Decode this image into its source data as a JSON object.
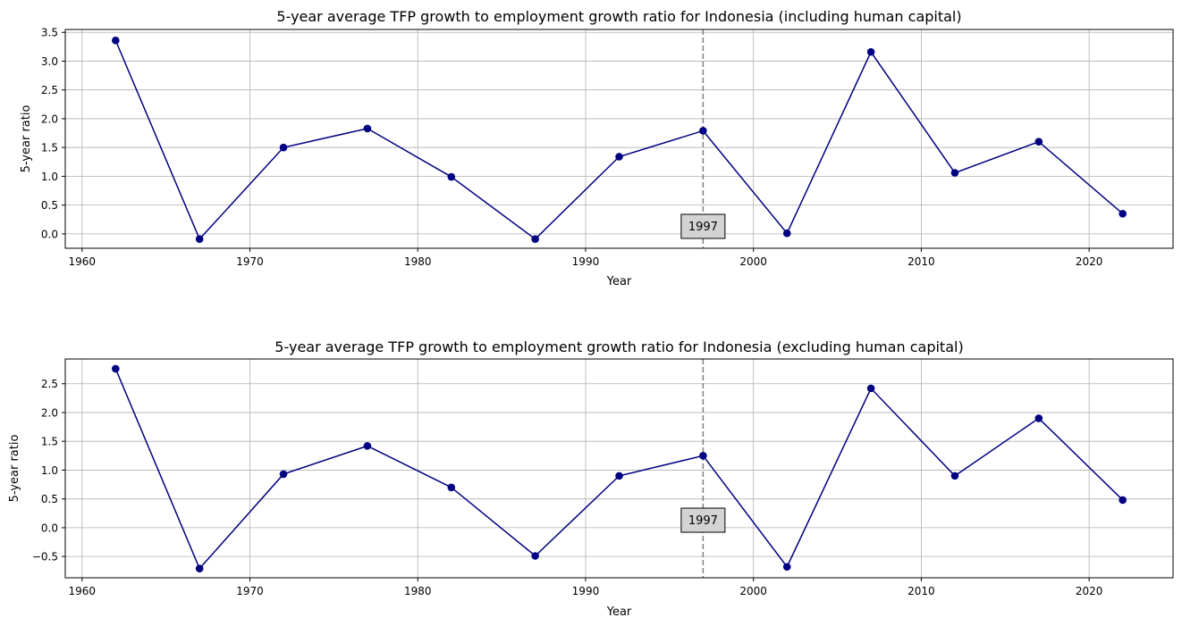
{
  "chart_data": [
    {
      "type": "line",
      "title": "5-year average TFP growth to employment growth ratio for Indonesia (including human capital)",
      "xlabel": "Year",
      "ylabel": "5-year ratio",
      "xlim": [
        1959,
        2025
      ],
      "ylim": [
        -0.25,
        3.55
      ],
      "xticks": [
        1960,
        1970,
        1980,
        1990,
        2000,
        2010,
        2020
      ],
      "yticks": [
        0.0,
        0.5,
        1.0,
        1.5,
        2.0,
        2.5,
        3.0,
        3.5
      ],
      "ytick_labels": [
        "0.0",
        "0.5",
        "1.0",
        "1.5",
        "2.0",
        "2.5",
        "3.0",
        "3.5"
      ],
      "grid": true,
      "series": [
        {
          "color": "#000080",
          "marker": "circle",
          "x": [
            1962,
            1967,
            1972,
            1977,
            1982,
            1987,
            1992,
            1997,
            2002,
            2007,
            2012,
            2017,
            2022
          ],
          "y": [
            3.36,
            -0.09,
            1.5,
            1.83,
            0.99,
            -0.09,
            1.34,
            1.79,
            0.01,
            3.16,
            1.06,
            1.6,
            0.35
          ]
        }
      ],
      "vline": {
        "x": 1997,
        "color": "#808080",
        "style": "dashed"
      },
      "annotation": {
        "text": "1997",
        "x": 1997,
        "y": 0.13
      }
    },
    {
      "type": "line",
      "title": "5-year average TFP growth to employment growth ratio for Indonesia (excluding human capital)",
      "xlabel": "Year",
      "ylabel": "5-year ratio",
      "xlim": [
        1959,
        2025
      ],
      "ylim": [
        -0.87,
        2.93
      ],
      "xticks": [
        1960,
        1970,
        1980,
        1990,
        2000,
        2010,
        2020
      ],
      "yticks": [
        -0.5,
        0.0,
        0.5,
        1.0,
        1.5,
        2.0,
        2.5
      ],
      "ytick_labels": [
        "−0.5",
        "0.0",
        "0.5",
        "1.0",
        "1.5",
        "2.0",
        "2.5"
      ],
      "grid": true,
      "series": [
        {
          "color": "#000080",
          "marker": "circle",
          "x": [
            1962,
            1967,
            1972,
            1977,
            1982,
            1987,
            1992,
            1997,
            2002,
            2007,
            2012,
            2017,
            2022
          ],
          "y": [
            2.76,
            -0.71,
            0.93,
            1.42,
            0.7,
            -0.49,
            0.9,
            1.25,
            -0.68,
            2.42,
            0.9,
            1.9,
            0.48
          ]
        }
      ],
      "vline": {
        "x": 1997,
        "color": "#808080",
        "style": "dashed"
      },
      "annotation": {
        "text": "1997",
        "x": 1997,
        "y": 0.13
      }
    }
  ]
}
